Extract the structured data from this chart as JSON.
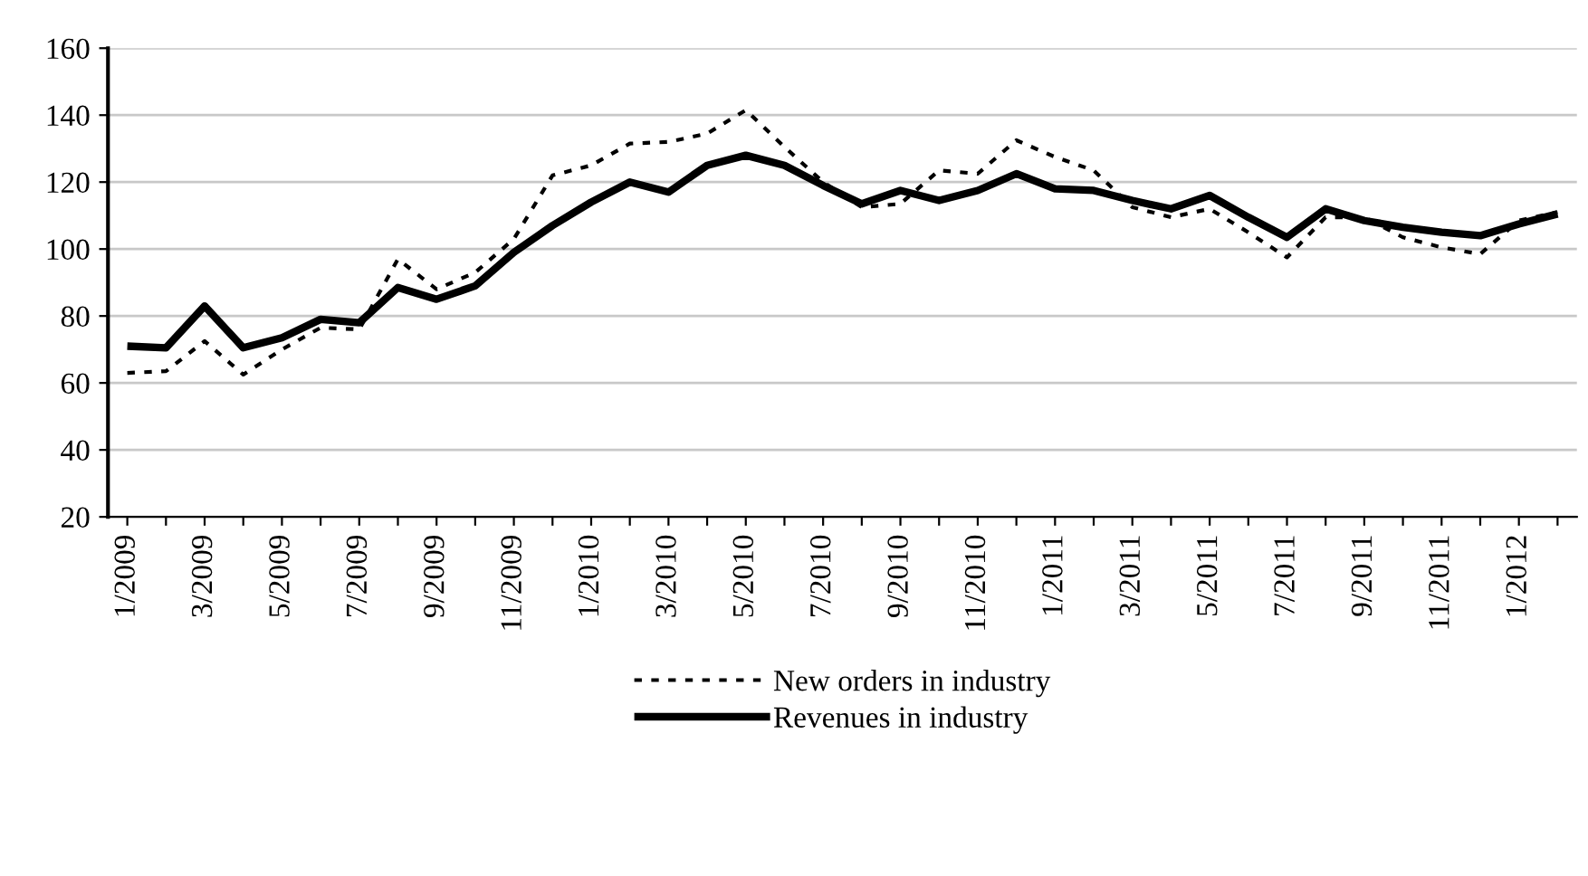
{
  "chart_data": {
    "type": "line",
    "categories": [
      "1/2009",
      null,
      "3/2009",
      null,
      "5/2009",
      null,
      "7/2009",
      null,
      "9/2009",
      null,
      "11/2009",
      null,
      "1/2010",
      null,
      "3/2010",
      null,
      "5/2010",
      null,
      "7/2010",
      null,
      "9/2010",
      null,
      "11/2010",
      null,
      "1/2011",
      null,
      "3/2011",
      null,
      "5/2011",
      null,
      "7/2011",
      null,
      "9/2011",
      null,
      "11/2011",
      null,
      "1/2012",
      null
    ],
    "series": [
      {
        "name": "New orders in industry",
        "color": "#000000",
        "line_style": "dotted",
        "values": [
          63,
          63.5,
          72.5,
          62.5,
          70,
          76.5,
          76,
          97,
          88,
          93,
          103,
          122,
          125,
          131.5,
          132,
          134.5,
          141.5,
          130.5,
          120,
          112.5,
          113.5,
          123.5,
          122.5,
          132.5,
          127.5,
          123.5,
          112.5,
          109.5,
          112,
          105,
          97.5,
          109.5,
          109.5,
          103.5,
          100.5,
          98.5,
          108.5,
          111
        ]
      },
      {
        "name": "Revenues in industry",
        "color": "#000000",
        "line_style": "solid",
        "values": [
          71,
          70.5,
          83,
          70.5,
          73.5,
          79,
          78,
          88.5,
          85,
          89,
          99,
          107,
          114,
          120,
          117,
          125,
          128,
          125,
          119,
          113.5,
          117.5,
          114.5,
          117.5,
          122.5,
          118,
          117.5,
          114.5,
          112,
          116,
          109.5,
          103.5,
          112,
          108.5,
          106.5,
          105,
          104,
          107.5,
          110.5
        ]
      }
    ],
    "ylim": [
      20,
      160
    ],
    "yticks": [
      20,
      40,
      60,
      80,
      100,
      120,
      140,
      160
    ],
    "grid": "y",
    "legend": "bottom",
    "marker": "none"
  }
}
